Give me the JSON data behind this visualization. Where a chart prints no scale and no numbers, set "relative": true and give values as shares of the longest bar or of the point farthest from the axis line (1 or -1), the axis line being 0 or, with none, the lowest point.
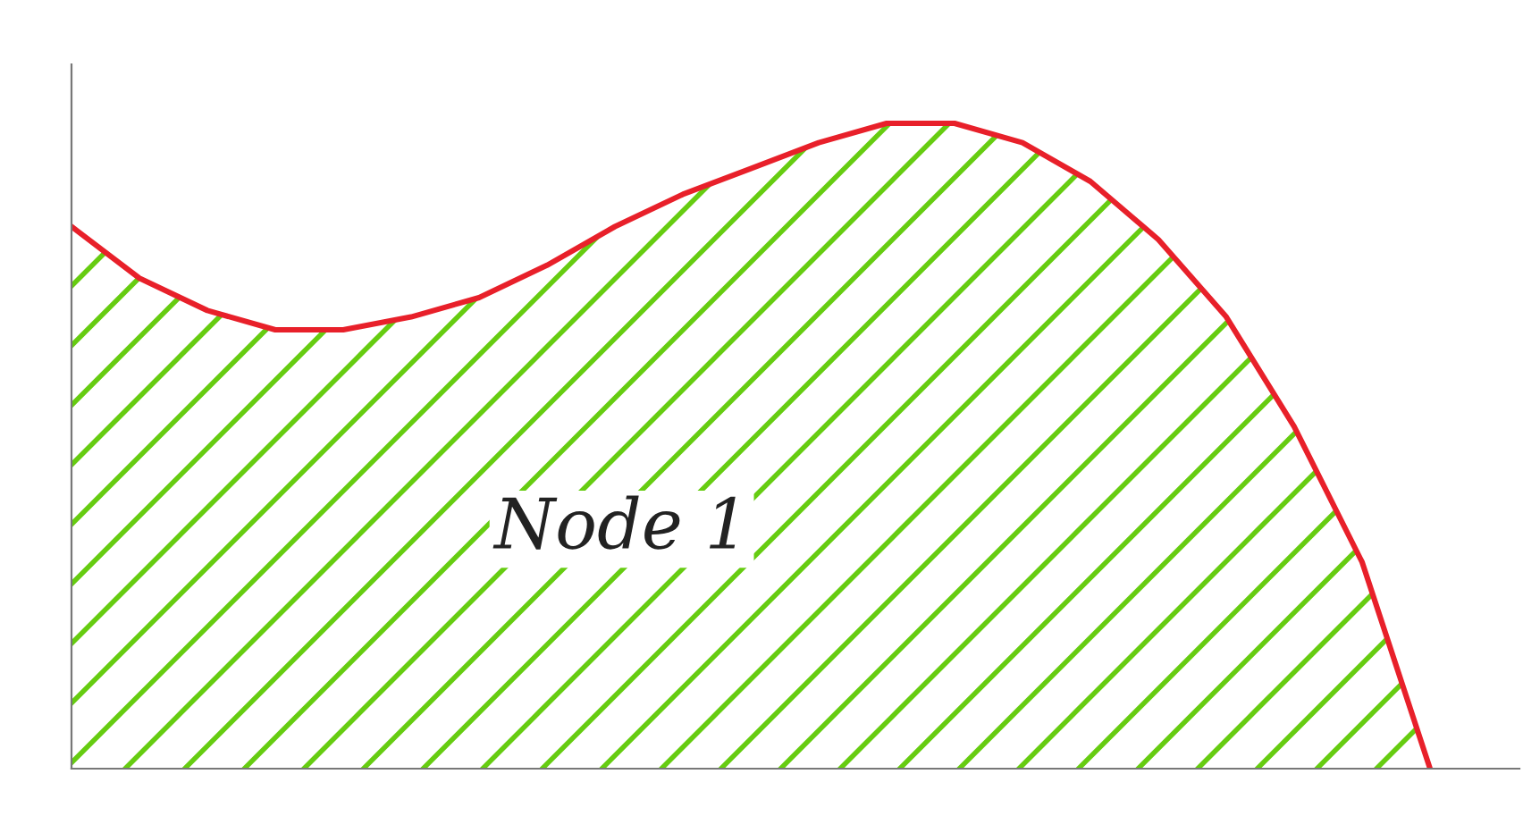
{
  "chart_data": {
    "type": "area",
    "relative": true,
    "categories": [
      null,
      null,
      null,
      null,
      null,
      null,
      null,
      null,
      null,
      null,
      null,
      null,
      null,
      null,
      null,
      null,
      null,
      null,
      null,
      null,
      null
    ],
    "series": [
      {
        "color": "#e8202a",
        "values": [
          0.84,
          0.76,
          0.71,
          0.68,
          0.68,
          0.7,
          0.73,
          0.78,
          0.84,
          0.89,
          0.93,
          0.97,
          1.0,
          1.0,
          0.97,
          0.91,
          0.82,
          0.7,
          0.53,
          0.32,
          0
        ]
      }
    ],
    "annotations": [
      "Node 1"
    ]
  }
}
